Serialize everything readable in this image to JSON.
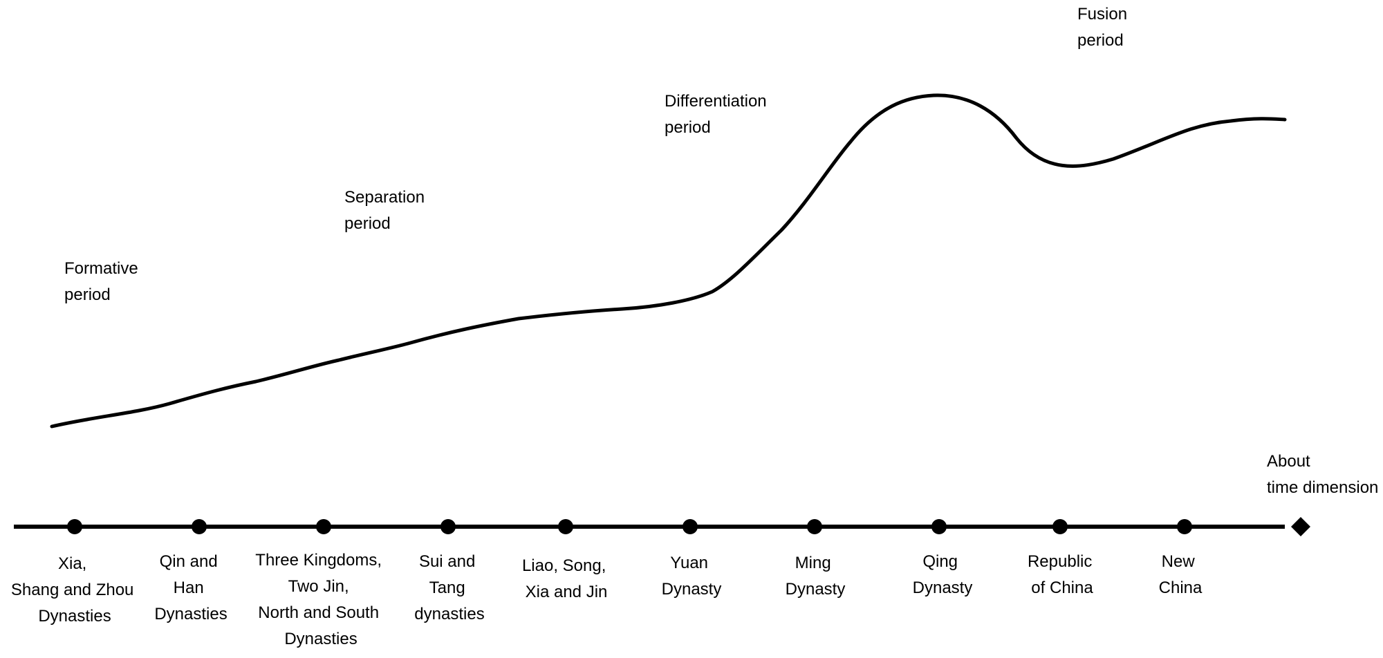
{
  "diagram": {
    "phases": [
      {
        "lines": [
          "Formative",
          "period"
        ]
      },
      {
        "lines": [
          "Separation",
          "period"
        ]
      },
      {
        "lines": [
          "Differentiation",
          "period"
        ]
      },
      {
        "lines": [
          "Fusion",
          "period"
        ]
      }
    ],
    "axis_label": {
      "lines": [
        "About",
        "time dimension"
      ]
    },
    "eras": [
      {
        "lines": [
          "Xia,",
          "Shang and Zhou",
          "Dynasties"
        ]
      },
      {
        "lines": [
          "Qin and",
          "Han",
          "Dynasties"
        ]
      },
      {
        "lines": [
          "Three Kingdoms,",
          "Two Jin,",
          "North and South",
          "Dynasties"
        ]
      },
      {
        "lines": [
          "Sui and",
          "Tang",
          "dynasties"
        ]
      },
      {
        "lines": [
          "Liao, Song,",
          "Xia and Jin"
        ]
      },
      {
        "lines": [
          "Yuan",
          "Dynasty"
        ]
      },
      {
        "lines": [
          "Ming",
          "Dynasty"
        ]
      },
      {
        "lines": [
          "Qing",
          "Dynasty"
        ]
      },
      {
        "lines": [
          "Republic",
          "of China"
        ]
      },
      {
        "lines": [
          "New",
          "China"
        ]
      }
    ],
    "colors": {
      "line": "#000000",
      "background": "#ffffff"
    },
    "icons": {
      "axis_end": "diamond-icon",
      "era_marker": "circle-dot-icon"
    }
  }
}
